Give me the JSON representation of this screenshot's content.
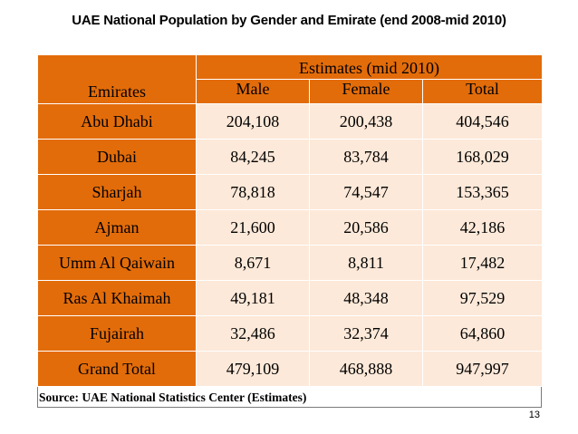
{
  "title": "UAE National Population by Gender and Emirate (end 2008-mid 2010)",
  "source": "Source: UAE National Statistics Center (Estimates)",
  "page_number": "13",
  "colors": {
    "header": "#e36c0a",
    "cell": "#fde9d9",
    "border": "#ffffff"
  },
  "chart_data": {
    "type": "table",
    "title": "UAE National Population by Gender and Emirate (end 2008-mid 2010)",
    "group_header": "Estimates (mid 2010)",
    "row_header": "Emirates",
    "columns": [
      "Male",
      "Female",
      "Total"
    ],
    "rows": [
      {
        "emirate": "Abu Dhabi",
        "male": "204,108",
        "female": "200,438",
        "total": "404,546"
      },
      {
        "emirate": "Dubai",
        "male": "84,245",
        "female": "83,784",
        "total": "168,029"
      },
      {
        "emirate": "Sharjah",
        "male": "78,818",
        "female": "74,547",
        "total": "153,365"
      },
      {
        "emirate": "Ajman",
        "male": "21,600",
        "female": "20,586",
        "total": "42,186"
      },
      {
        "emirate": "Umm Al Qaiwain",
        "male": "8,671",
        "female": "8,811",
        "total": "17,482"
      },
      {
        "emirate": "Ras Al Khaimah",
        "male": "49,181",
        "female": "48,348",
        "total": "97,529"
      },
      {
        "emirate": "Fujairah",
        "male": "32,486",
        "female": "32,374",
        "total": "64,860"
      },
      {
        "emirate": "Grand Total",
        "male": "479,109",
        "female": "468,888",
        "total": "947,997"
      }
    ]
  }
}
